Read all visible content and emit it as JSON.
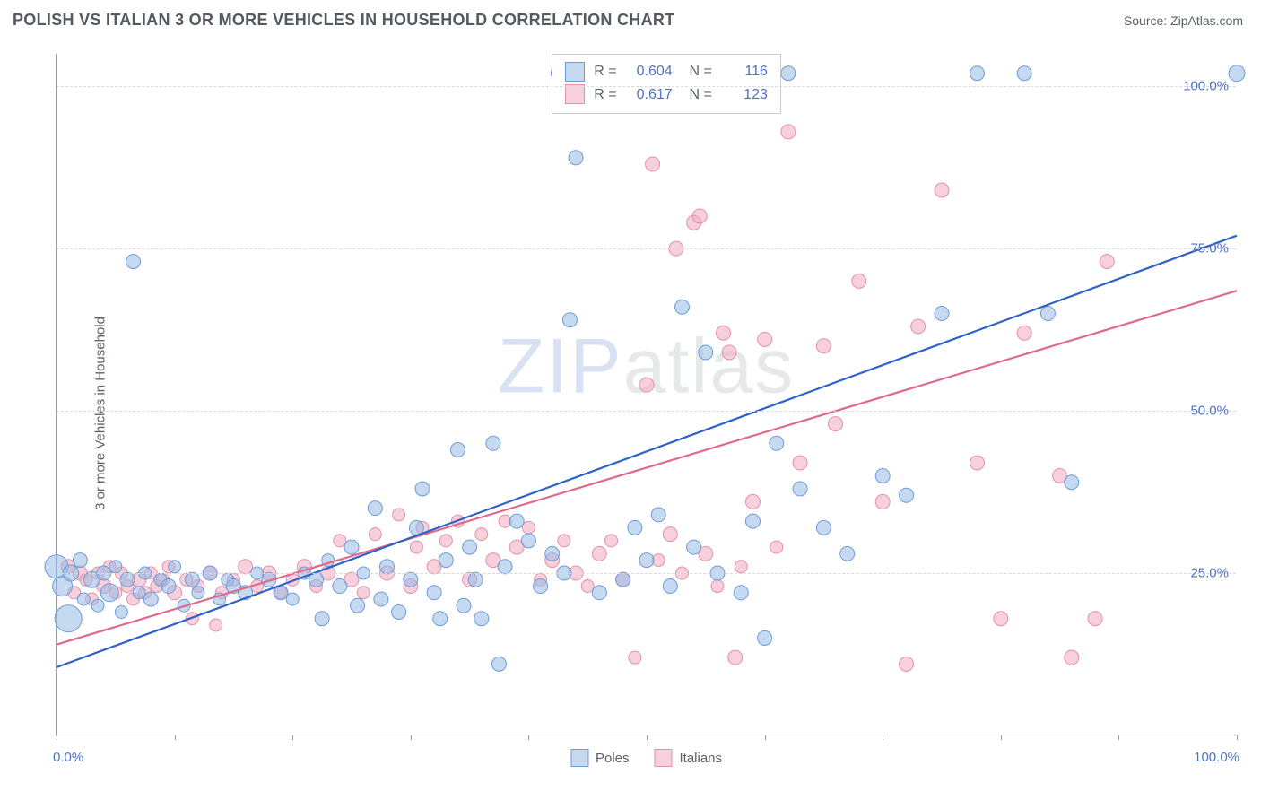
{
  "header": {
    "title": "POLISH VS ITALIAN 3 OR MORE VEHICLES IN HOUSEHOLD CORRELATION CHART",
    "source": "Source: ZipAtlas.com"
  },
  "chart": {
    "type": "scatter",
    "ylabel": "3 or more Vehicles in Household",
    "xlim": [
      0,
      100
    ],
    "ylim": [
      0,
      105
    ],
    "xtick_positions": [
      0,
      10,
      20,
      30,
      40,
      50,
      60,
      70,
      80,
      90,
      100
    ],
    "xtick_labels_shown": {
      "left": "0.0%",
      "right": "100.0%"
    },
    "ytick_positions": [
      25,
      50,
      75,
      100
    ],
    "ytick_labels": [
      "25.0%",
      "50.0%",
      "75.0%",
      "100.0%"
    ],
    "grid_color": "#d8dbdd",
    "axis_color": "#989da2",
    "background_color": "#ffffff",
    "label_color": "#5b6167",
    "value_color": "#4f72c6",
    "watermark": "ZIPatlas",
    "series": [
      {
        "name": "Poles",
        "color_fill": "rgba(150,185,230,0.55)",
        "color_stroke": "#6f9bd8",
        "line_color": "#2e62c9",
        "r_value": "0.604",
        "n_value": "116",
        "trend": {
          "x1": 0,
          "y1": 10.5,
          "x2": 100,
          "y2": 77.0
        },
        "points": [
          {
            "x": 0,
            "y": 26,
            "r": 13
          },
          {
            "x": 0.5,
            "y": 23,
            "r": 11
          },
          {
            "x": 1,
            "y": 18,
            "r": 15
          },
          {
            "x": 1.2,
            "y": 25,
            "r": 9
          },
          {
            "x": 2,
            "y": 27,
            "r": 8
          },
          {
            "x": 2.3,
            "y": 21,
            "r": 7
          },
          {
            "x": 3,
            "y": 24,
            "r": 9
          },
          {
            "x": 3.5,
            "y": 20,
            "r": 7
          },
          {
            "x": 4,
            "y": 25,
            "r": 8
          },
          {
            "x": 4.5,
            "y": 22,
            "r": 10
          },
          {
            "x": 5,
            "y": 26,
            "r": 7
          },
          {
            "x": 5.5,
            "y": 19,
            "r": 7
          },
          {
            "x": 6,
            "y": 24,
            "r": 8
          },
          {
            "x": 6.5,
            "y": 73,
            "r": 8
          },
          {
            "x": 7,
            "y": 22,
            "r": 7
          },
          {
            "x": 7.5,
            "y": 25,
            "r": 7
          },
          {
            "x": 8,
            "y": 21,
            "r": 8
          },
          {
            "x": 8.8,
            "y": 24,
            "r": 7
          },
          {
            "x": 9.5,
            "y": 23,
            "r": 8
          },
          {
            "x": 10,
            "y": 26,
            "r": 7
          },
          {
            "x": 10.8,
            "y": 20,
            "r": 7
          },
          {
            "x": 11.5,
            "y": 24,
            "r": 8
          },
          {
            "x": 12,
            "y": 22,
            "r": 7
          },
          {
            "x": 13,
            "y": 25,
            "r": 8
          },
          {
            "x": 13.8,
            "y": 21,
            "r": 7
          },
          {
            "x": 14.5,
            "y": 24,
            "r": 7
          },
          {
            "x": 15,
            "y": 23,
            "r": 8
          },
          {
            "x": 16,
            "y": 22,
            "r": 8
          },
          {
            "x": 17,
            "y": 25,
            "r": 7
          },
          {
            "x": 18,
            "y": 24,
            "r": 8
          },
          {
            "x": 19,
            "y": 22,
            "r": 8
          },
          {
            "x": 20,
            "y": 21,
            "r": 7
          },
          {
            "x": 21,
            "y": 25,
            "r": 7
          },
          {
            "x": 22,
            "y": 24,
            "r": 8
          },
          {
            "x": 22.5,
            "y": 18,
            "r": 8
          },
          {
            "x": 23,
            "y": 27,
            "r": 7
          },
          {
            "x": 24,
            "y": 23,
            "r": 8
          },
          {
            "x": 25,
            "y": 29,
            "r": 8
          },
          {
            "x": 25.5,
            "y": 20,
            "r": 8
          },
          {
            "x": 26,
            "y": 25,
            "r": 7
          },
          {
            "x": 27,
            "y": 35,
            "r": 8
          },
          {
            "x": 27.5,
            "y": 21,
            "r": 8
          },
          {
            "x": 28,
            "y": 26,
            "r": 8
          },
          {
            "x": 29,
            "y": 19,
            "r": 8
          },
          {
            "x": 30,
            "y": 24,
            "r": 8
          },
          {
            "x": 30.5,
            "y": 32,
            "r": 8
          },
          {
            "x": 31,
            "y": 38,
            "r": 8
          },
          {
            "x": 32,
            "y": 22,
            "r": 8
          },
          {
            "x": 32.5,
            "y": 18,
            "r": 8
          },
          {
            "x": 33,
            "y": 27,
            "r": 8
          },
          {
            "x": 34,
            "y": 44,
            "r": 8
          },
          {
            "x": 34.5,
            "y": 20,
            "r": 8
          },
          {
            "x": 35,
            "y": 29,
            "r": 8
          },
          {
            "x": 35.5,
            "y": 24,
            "r": 8
          },
          {
            "x": 36,
            "y": 18,
            "r": 8
          },
          {
            "x": 37,
            "y": 45,
            "r": 8
          },
          {
            "x": 37.5,
            "y": 11,
            "r": 8
          },
          {
            "x": 38,
            "y": 26,
            "r": 8
          },
          {
            "x": 39,
            "y": 33,
            "r": 8
          },
          {
            "x": 40,
            "y": 30,
            "r": 8
          },
          {
            "x": 41,
            "y": 23,
            "r": 8
          },
          {
            "x": 42,
            "y": 28,
            "r": 8
          },
          {
            "x": 42.5,
            "y": 102,
            "r": 8
          },
          {
            "x": 43,
            "y": 25,
            "r": 8
          },
          {
            "x": 43.5,
            "y": 64,
            "r": 8
          },
          {
            "x": 44,
            "y": 89,
            "r": 8
          },
          {
            "x": 45,
            "y": 102,
            "r": 8
          },
          {
            "x": 46,
            "y": 22,
            "r": 8
          },
          {
            "x": 46.5,
            "y": 102,
            "r": 8
          },
          {
            "x": 48,
            "y": 24,
            "r": 8
          },
          {
            "x": 49,
            "y": 32,
            "r": 8
          },
          {
            "x": 50,
            "y": 27,
            "r": 8
          },
          {
            "x": 51,
            "y": 34,
            "r": 8
          },
          {
            "x": 52,
            "y": 23,
            "r": 8
          },
          {
            "x": 53,
            "y": 66,
            "r": 8
          },
          {
            "x": 54,
            "y": 29,
            "r": 8
          },
          {
            "x": 55,
            "y": 59,
            "r": 8
          },
          {
            "x": 56,
            "y": 25,
            "r": 8
          },
          {
            "x": 58,
            "y": 22,
            "r": 8
          },
          {
            "x": 59,
            "y": 33,
            "r": 8
          },
          {
            "x": 60,
            "y": 15,
            "r": 8
          },
          {
            "x": 61,
            "y": 45,
            "r": 8
          },
          {
            "x": 62,
            "y": 102,
            "r": 8
          },
          {
            "x": 63,
            "y": 38,
            "r": 8
          },
          {
            "x": 65,
            "y": 32,
            "r": 8
          },
          {
            "x": 67,
            "y": 28,
            "r": 8
          },
          {
            "x": 70,
            "y": 40,
            "r": 8
          },
          {
            "x": 72,
            "y": 37,
            "r": 8
          },
          {
            "x": 75,
            "y": 65,
            "r": 8
          },
          {
            "x": 78,
            "y": 102,
            "r": 8
          },
          {
            "x": 82,
            "y": 102,
            "r": 8
          },
          {
            "x": 84,
            "y": 65,
            "r": 8
          },
          {
            "x": 86,
            "y": 39,
            "r": 8
          },
          {
            "x": 100,
            "y": 102,
            "r": 9
          }
        ]
      },
      {
        "name": "Italians",
        "color_fill": "rgba(240,170,190,0.55)",
        "color_stroke": "#e490a8",
        "line_color": "#e06a8c",
        "r_value": "0.617",
        "n_value": "123",
        "trend": {
          "x1": 0,
          "y1": 14.0,
          "x2": 100,
          "y2": 68.5
        },
        "points": [
          {
            "x": 1,
            "y": 26,
            "r": 8
          },
          {
            "x": 1.5,
            "y": 22,
            "r": 7
          },
          {
            "x": 2,
            "y": 25,
            "r": 8
          },
          {
            "x": 2.5,
            "y": 24,
            "r": 7
          },
          {
            "x": 3,
            "y": 21,
            "r": 7
          },
          {
            "x": 3.5,
            "y": 25,
            "r": 7
          },
          {
            "x": 4,
            "y": 23,
            "r": 8
          },
          {
            "x": 4.5,
            "y": 26,
            "r": 7
          },
          {
            "x": 5,
            "y": 22,
            "r": 7
          },
          {
            "x": 5.5,
            "y": 25,
            "r": 7
          },
          {
            "x": 6,
            "y": 23,
            "r": 7
          },
          {
            "x": 6.5,
            "y": 21,
            "r": 7
          },
          {
            "x": 7,
            "y": 24,
            "r": 8
          },
          {
            "x": 7.5,
            "y": 22,
            "r": 7
          },
          {
            "x": 8,
            "y": 25,
            "r": 7
          },
          {
            "x": 8.5,
            "y": 23,
            "r": 7
          },
          {
            "x": 9,
            "y": 24,
            "r": 7
          },
          {
            "x": 9.5,
            "y": 26,
            "r": 7
          },
          {
            "x": 10,
            "y": 22,
            "r": 8
          },
          {
            "x": 11,
            "y": 24,
            "r": 7
          },
          {
            "x": 11.5,
            "y": 18,
            "r": 7
          },
          {
            "x": 12,
            "y": 23,
            "r": 7
          },
          {
            "x": 13,
            "y": 25,
            "r": 8
          },
          {
            "x": 13.5,
            "y": 17,
            "r": 7
          },
          {
            "x": 14,
            "y": 22,
            "r": 7
          },
          {
            "x": 15,
            "y": 24,
            "r": 7
          },
          {
            "x": 16,
            "y": 26,
            "r": 8
          },
          {
            "x": 17,
            "y": 23,
            "r": 7
          },
          {
            "x": 18,
            "y": 25,
            "r": 8
          },
          {
            "x": 19,
            "y": 22,
            "r": 7
          },
          {
            "x": 20,
            "y": 24,
            "r": 7
          },
          {
            "x": 21,
            "y": 26,
            "r": 8
          },
          {
            "x": 22,
            "y": 23,
            "r": 7
          },
          {
            "x": 23,
            "y": 25,
            "r": 8
          },
          {
            "x": 24,
            "y": 30,
            "r": 7
          },
          {
            "x": 25,
            "y": 24,
            "r": 8
          },
          {
            "x": 26,
            "y": 22,
            "r": 7
          },
          {
            "x": 27,
            "y": 31,
            "r": 7
          },
          {
            "x": 28,
            "y": 25,
            "r": 8
          },
          {
            "x": 29,
            "y": 34,
            "r": 7
          },
          {
            "x": 30,
            "y": 23,
            "r": 8
          },
          {
            "x": 30.5,
            "y": 29,
            "r": 7
          },
          {
            "x": 31,
            "y": 32,
            "r": 7
          },
          {
            "x": 32,
            "y": 26,
            "r": 8
          },
          {
            "x": 33,
            "y": 30,
            "r": 7
          },
          {
            "x": 34,
            "y": 33,
            "r": 7
          },
          {
            "x": 35,
            "y": 24,
            "r": 8
          },
          {
            "x": 36,
            "y": 31,
            "r": 7
          },
          {
            "x": 37,
            "y": 27,
            "r": 8
          },
          {
            "x": 38,
            "y": 33,
            "r": 7
          },
          {
            "x": 39,
            "y": 29,
            "r": 8
          },
          {
            "x": 40,
            "y": 32,
            "r": 7
          },
          {
            "x": 41,
            "y": 24,
            "r": 7
          },
          {
            "x": 42,
            "y": 27,
            "r": 8
          },
          {
            "x": 43,
            "y": 30,
            "r": 7
          },
          {
            "x": 44,
            "y": 25,
            "r": 8
          },
          {
            "x": 45,
            "y": 23,
            "r": 7
          },
          {
            "x": 46,
            "y": 28,
            "r": 8
          },
          {
            "x": 47,
            "y": 30,
            "r": 7
          },
          {
            "x": 48,
            "y": 24,
            "r": 8
          },
          {
            "x": 49,
            "y": 12,
            "r": 7
          },
          {
            "x": 50,
            "y": 54,
            "r": 8
          },
          {
            "x": 50.5,
            "y": 88,
            "r": 8
          },
          {
            "x": 51,
            "y": 27,
            "r": 7
          },
          {
            "x": 52,
            "y": 31,
            "r": 8
          },
          {
            "x": 52.5,
            "y": 75,
            "r": 8
          },
          {
            "x": 53,
            "y": 25,
            "r": 7
          },
          {
            "x": 54,
            "y": 79,
            "r": 8
          },
          {
            "x": 54.5,
            "y": 80,
            "r": 8
          },
          {
            "x": 55,
            "y": 28,
            "r": 8
          },
          {
            "x": 56,
            "y": 23,
            "r": 7
          },
          {
            "x": 56.5,
            "y": 62,
            "r": 8
          },
          {
            "x": 57,
            "y": 59,
            "r": 8
          },
          {
            "x": 57.5,
            "y": 12,
            "r": 8
          },
          {
            "x": 58,
            "y": 26,
            "r": 7
          },
          {
            "x": 59,
            "y": 36,
            "r": 8
          },
          {
            "x": 60,
            "y": 61,
            "r": 8
          },
          {
            "x": 61,
            "y": 29,
            "r": 7
          },
          {
            "x": 62,
            "y": 93,
            "r": 8
          },
          {
            "x": 63,
            "y": 42,
            "r": 8
          },
          {
            "x": 65,
            "y": 60,
            "r": 8
          },
          {
            "x": 66,
            "y": 48,
            "r": 8
          },
          {
            "x": 68,
            "y": 70,
            "r": 8
          },
          {
            "x": 70,
            "y": 36,
            "r": 8
          },
          {
            "x": 72,
            "y": 11,
            "r": 8
          },
          {
            "x": 73,
            "y": 63,
            "r": 8
          },
          {
            "x": 75,
            "y": 84,
            "r": 8
          },
          {
            "x": 78,
            "y": 42,
            "r": 8
          },
          {
            "x": 80,
            "y": 18,
            "r": 8
          },
          {
            "x": 82,
            "y": 62,
            "r": 8
          },
          {
            "x": 85,
            "y": 40,
            "r": 8
          },
          {
            "x": 86,
            "y": 12,
            "r": 8
          },
          {
            "x": 88,
            "y": 18,
            "r": 8
          },
          {
            "x": 89,
            "y": 73,
            "r": 8
          }
        ]
      }
    ],
    "bottom_legend": [
      "Poles",
      "Italians"
    ]
  }
}
